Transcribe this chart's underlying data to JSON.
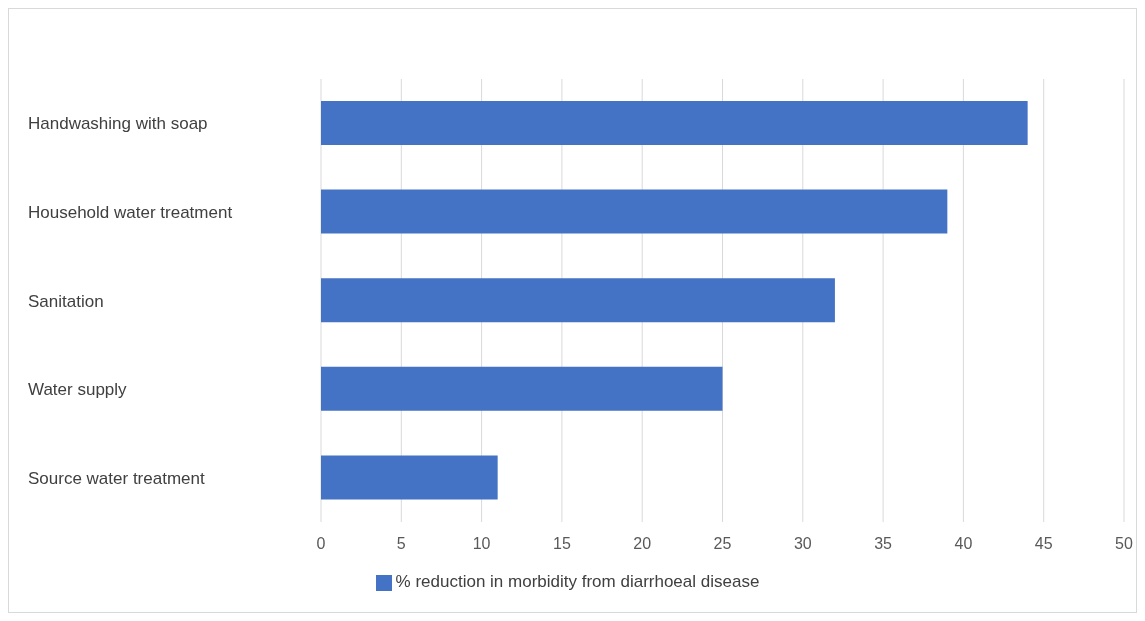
{
  "chart_data": {
    "type": "bar",
    "orientation": "horizontal",
    "categories": [
      "Handwashing with soap",
      "Household water treatment",
      "Sanitation",
      "Water supply",
      "Source water treatment"
    ],
    "series": [
      {
        "name": "% reduction in morbidity from diarrhoeal disease",
        "color": "#4472c4",
        "values": [
          44,
          39,
          32,
          25,
          11
        ]
      }
    ],
    "xlim": [
      0,
      50
    ],
    "xticks": [
      0,
      5,
      10,
      15,
      20,
      25,
      30,
      35,
      40,
      45,
      50
    ],
    "grid": "x",
    "legend": "bottom"
  }
}
